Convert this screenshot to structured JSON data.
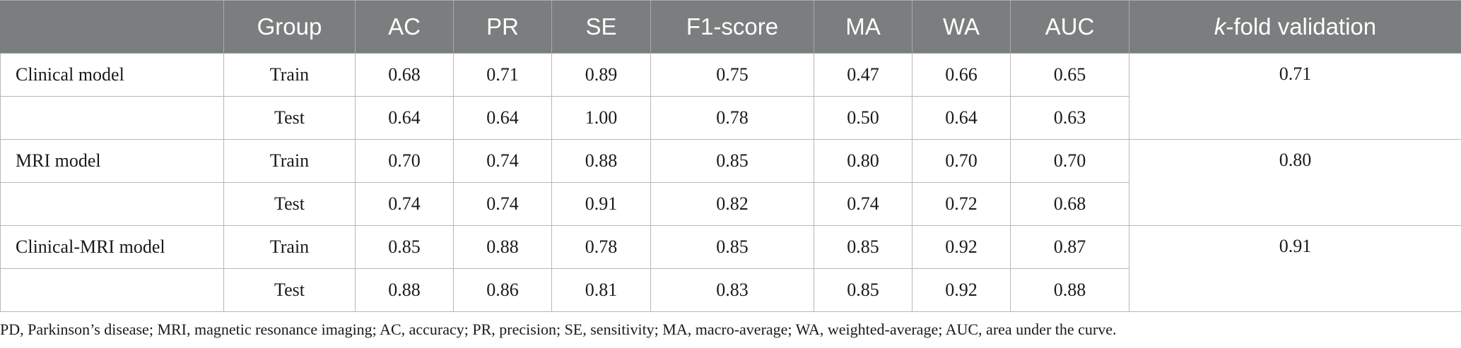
{
  "header": {
    "corner": "",
    "group": "Group",
    "ac": "AC",
    "pr": "PR",
    "se": "SE",
    "f1": "F1-score",
    "ma": "MA",
    "wa": "WA",
    "auc": "AUC",
    "kfold_k": "k",
    "kfold_rest": "-fold validation"
  },
  "models": [
    {
      "name": "Clinical model",
      "kfold": "0.71",
      "rows": [
        {
          "group": "Train",
          "ac": "0.68",
          "pr": "0.71",
          "se": "0.89",
          "f1": "0.75",
          "ma": "0.47",
          "wa": "0.66",
          "auc": "0.65"
        },
        {
          "group": "Test",
          "ac": "0.64",
          "pr": "0.64",
          "se": "1.00",
          "f1": "0.78",
          "ma": "0.50",
          "wa": "0.64",
          "auc": "0.63"
        }
      ]
    },
    {
      "name": "MRI model",
      "kfold": "0.80",
      "rows": [
        {
          "group": "Train",
          "ac": "0.70",
          "pr": "0.74",
          "se": "0.88",
          "f1": "0.85",
          "ma": "0.80",
          "wa": "0.70",
          "auc": "0.70"
        },
        {
          "group": "Test",
          "ac": "0.74",
          "pr": "0.74",
          "se": "0.91",
          "f1": "0.82",
          "ma": "0.74",
          "wa": "0.72",
          "auc": "0.68"
        }
      ]
    },
    {
      "name": "Clinical-MRI model",
      "kfold": "0.91",
      "rows": [
        {
          "group": "Train",
          "ac": "0.85",
          "pr": "0.88",
          "se": "0.78",
          "f1": "0.85",
          "ma": "0.85",
          "wa": "0.92",
          "auc": "0.87"
        },
        {
          "group": "Test",
          "ac": "0.88",
          "pr": "0.86",
          "se": "0.81",
          "f1": "0.83",
          "ma": "0.85",
          "wa": "0.92",
          "auc": "0.88"
        }
      ]
    }
  ],
  "footnote": "PD, Parkinson’s disease; MRI, magnetic resonance imaging; AC, accuracy; PR, precision; SE, sensitivity; MA, macro-average; WA, weighted-average; AUC, area under the curve.",
  "colors": {
    "header_bg": "#7b7e7e",
    "header_text": "#ffffff",
    "grid_line": "#b8b8b8"
  }
}
